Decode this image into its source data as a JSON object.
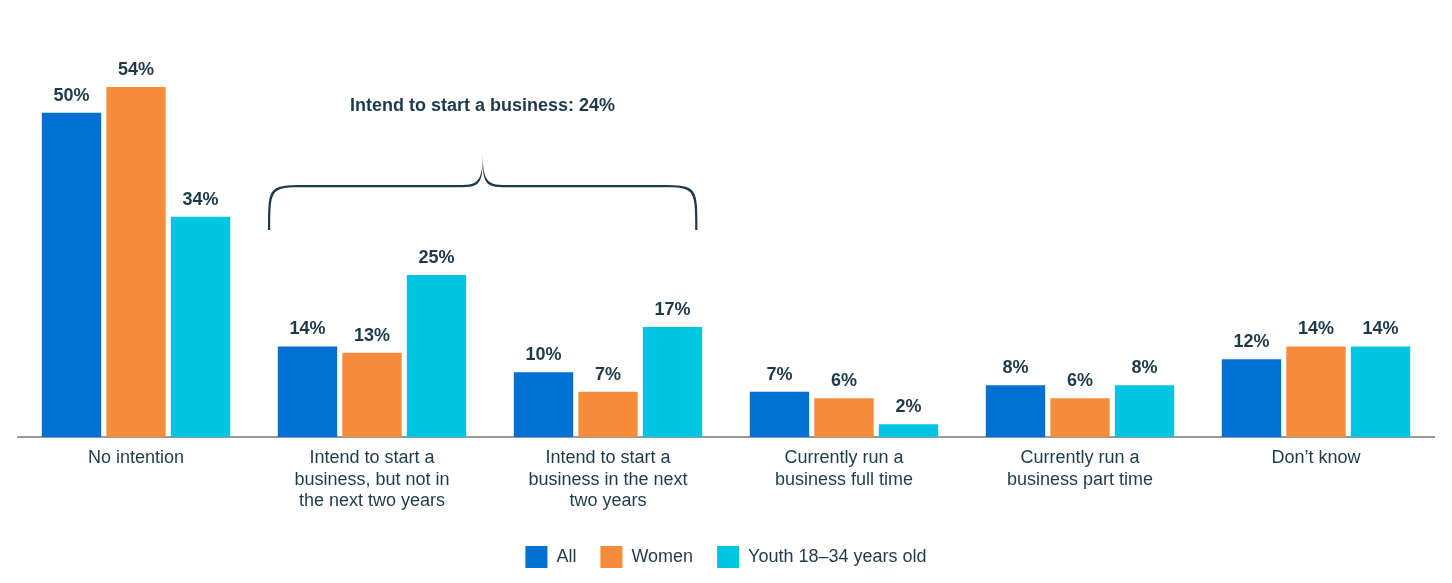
{
  "chart_data": {
    "type": "bar",
    "categories": [
      "No intention",
      "Intend to start a business, but not in the next two years",
      "Intend to start a business in the next two years",
      "Currently run a business full time",
      "Currently run a business part time",
      "Don’t know"
    ],
    "series": [
      {
        "name": "All",
        "color": "#0070d3",
        "values": [
          50,
          14,
          10,
          7,
          8,
          12
        ],
        "value_labels": [
          "50%",
          "14%",
          "10%",
          "7%",
          "8%",
          "12%"
        ]
      },
      {
        "name": "Women",
        "color": "#f68b3b",
        "values": [
          54,
          13,
          7,
          6,
          6,
          14
        ],
        "value_labels": [
          "54%",
          "13%",
          "7%",
          "6%",
          "6%",
          "14%"
        ]
      },
      {
        "name": "Youth 18–34 years old",
        "color": "#00c5e2",
        "values": [
          34,
          25,
          17,
          2,
          8,
          14
        ],
        "value_labels": [
          "34%",
          "25%",
          "17%",
          "2%",
          "8%",
          "14%"
        ]
      }
    ],
    "annotations": [
      "Intend to start a business: 24%"
    ],
    "legend": "bottom",
    "grid": false
  }
}
